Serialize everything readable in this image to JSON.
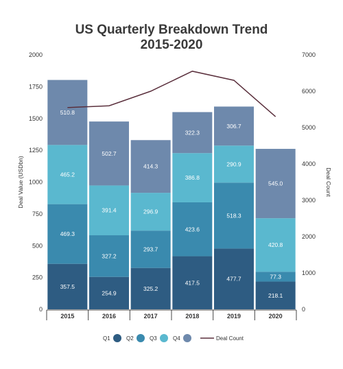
{
  "chart_data": {
    "type": "bar",
    "stacked": true,
    "title_lines": [
      "US Quarterly Breakdown Trend",
      "2015-2020"
    ],
    "categories": [
      "2015",
      "2016",
      "2017",
      "2018",
      "2019",
      "2020"
    ],
    "series": [
      {
        "name": "Q1",
        "color": "#2e5c82",
        "values": [
          357.5,
          254.9,
          325.2,
          417.5,
          477.7,
          218.1
        ]
      },
      {
        "name": "Q2",
        "color": "#3a8aae",
        "values": [
          469.3,
          327.2,
          293.7,
          423.6,
          518.3,
          77.3
        ]
      },
      {
        "name": "Q3",
        "color": "#5ab8cf",
        "values": [
          465.2,
          391.4,
          296.9,
          386.8,
          290.9,
          420.8
        ]
      },
      {
        "name": "Q4",
        "color": "#6e89ac",
        "values": [
          510.8,
          502.7,
          414.3,
          322.3,
          306.7,
          545.0
        ]
      }
    ],
    "line_series": {
      "name": "Deal Count",
      "color": "#5a2f3c",
      "values": [
        5550,
        5600,
        6000,
        6550,
        6300,
        5300
      ]
    },
    "ylabel": "Deal Value (USDbn)",
    "y2label": "Deal Count",
    "ylim": [
      0,
      2000
    ],
    "y2lim": [
      0,
      7000
    ],
    "yticks": [
      "0",
      "250",
      "500",
      "750",
      "1000",
      "1250",
      "1500",
      "1750",
      "2000"
    ],
    "y2ticks": [
      "0",
      "1000",
      "2000",
      "3000",
      "4000",
      "5000",
      "6000",
      "7000"
    ],
    "legend": {
      "placement": "bottom",
      "entries": [
        "Q1",
        "Q2",
        "Q3",
        "Q4",
        "Deal Count"
      ]
    }
  }
}
